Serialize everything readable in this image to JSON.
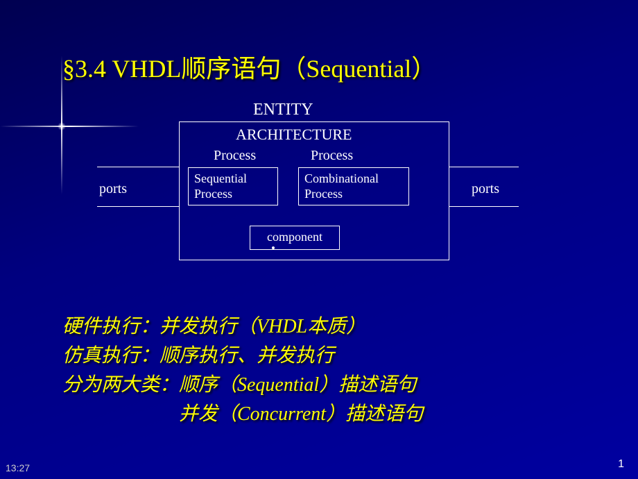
{
  "title": "§3.4  VHDL顺序语句（Sequential）",
  "diagram": {
    "entity": "ENTITY",
    "architecture": "ARCHITECTURE",
    "process1_header": "Process",
    "process2_header": "Process",
    "seq_process": "Sequential Process",
    "comb_process": "Combinational Process",
    "component": "component",
    "ports_left": "ports",
    "ports_right": "ports",
    "colors": {
      "border": "#ffffff",
      "text": "#ffffff"
    }
  },
  "body": {
    "line1": "硬件执行：并发执行（VHDL本质）",
    "line2": "仿真执行：顺序执行、并发执行",
    "line3": "分为两大类：顺序（Sequential）描述语句",
    "line4": "　　　　　　并发（Concurrent）描述语句"
  },
  "footer": {
    "timestamp": "13:27",
    "pagenum": "1"
  },
  "styling": {
    "background": "#000080",
    "title_color": "#ffff00",
    "body_color": "#ffff00",
    "title_fontsize": 36,
    "body_fontsize": 28,
    "diagram_fontsize": 20
  }
}
